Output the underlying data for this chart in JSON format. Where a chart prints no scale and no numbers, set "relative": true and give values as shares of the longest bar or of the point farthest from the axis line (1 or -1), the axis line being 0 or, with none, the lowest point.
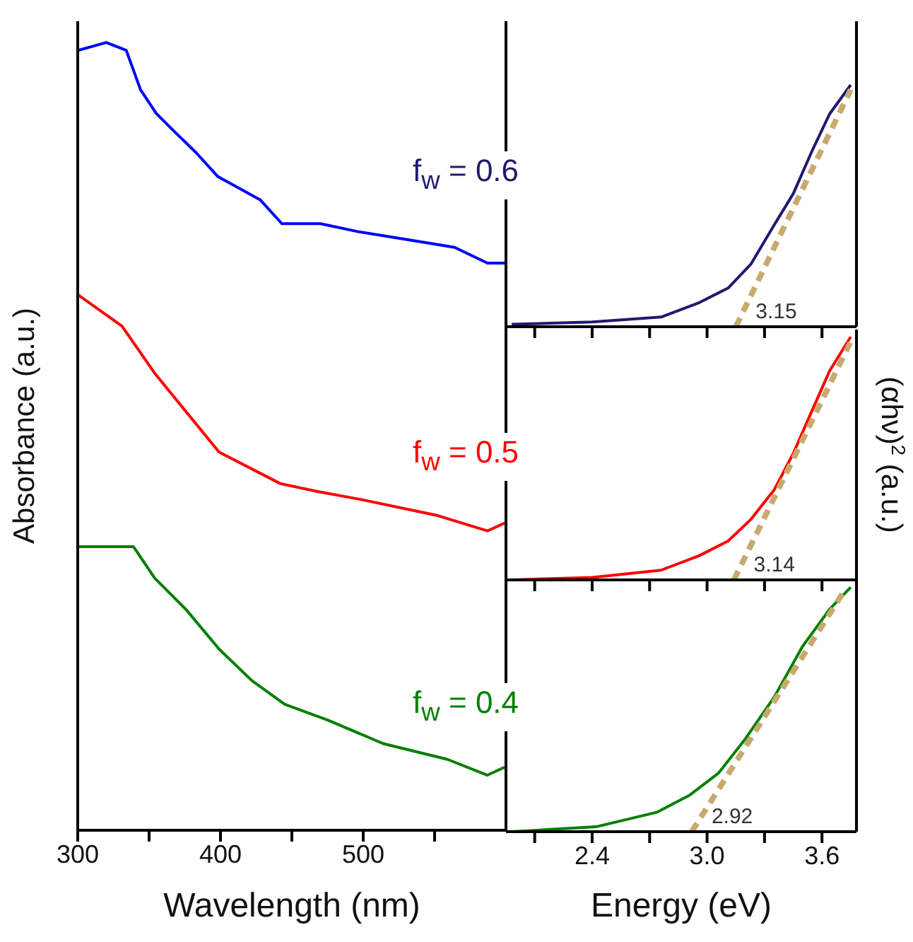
{
  "chart_data": [
    {
      "type": "line",
      "relative": true,
      "xlabel": "Wavelength (nm)",
      "ylabel": "Absorbance (a.u.)",
      "xlim": [
        300,
        600
      ],
      "xticks": [
        300,
        400,
        500,
        {
          "value": 350,
          "label": null
        },
        {
          "value": 450,
          "label": null
        },
        {
          "value": 550,
          "label": null
        }
      ],
      "series": [
        {
          "color": "#0000ff",
          "x": [
            300,
            320,
            334,
            344,
            355,
            366,
            383,
            398,
            428,
            443,
            470,
            496,
            530,
            564,
            587,
            599
          ],
          "values": [
            0.99,
            1.0,
            0.99,
            0.94,
            0.91,
            0.89,
            0.86,
            0.83,
            0.8,
            0.77,
            0.77,
            0.76,
            0.75,
            0.74,
            0.72,
            0.72
          ]
        },
        {
          "color": "#ff0000",
          "x": [
            300,
            331,
            354,
            372,
            399,
            442,
            468,
            498,
            551,
            587,
            599
          ],
          "values": [
            0.68,
            0.64,
            0.58,
            0.54,
            0.48,
            0.44,
            0.43,
            0.42,
            0.4,
            0.38,
            0.39
          ]
        },
        {
          "color": "#008000",
          "x": [
            300,
            339,
            354,
            376,
            399,
            422,
            445,
            475,
            514,
            559,
            587,
            599
          ],
          "values": [
            0.36,
            0.36,
            0.32,
            0.28,
            0.23,
            0.19,
            0.16,
            0.14,
            0.11,
            0.09,
            0.07,
            0.08
          ]
        }
      ]
    },
    {
      "type": "line",
      "relative": true,
      "tick_labels": false,
      "xlim": [
        1.95,
        3.78
      ],
      "xticks": [
        2.1,
        2.4,
        2.7,
        3,
        3.3,
        3.6
      ],
      "annotations": [
        "f$_{w}$ = 0.6",
        {
          "text": "3.15",
          "x": 3.15,
          "y": 0
        }
      ],
      "series": [
        {
          "color": "#1f1a6e",
          "x": [
            1.98,
            2.4,
            2.76,
            2.96,
            3.11,
            3.23,
            3.35,
            3.45,
            3.55,
            3.64,
            3.75
          ],
          "values": [
            0.01,
            0.02,
            0.04,
            0.1,
            0.16,
            0.26,
            0.42,
            0.55,
            0.73,
            0.88,
            1.0
          ]
        },
        {
          "color": "#c8aa6e",
          "line_style": "dashed",
          "x": [
            3.15,
            3.75
          ],
          "values": [
            0,
            0.98
          ]
        }
      ]
    },
    {
      "type": "line",
      "relative": true,
      "tick_labels": false,
      "ylabel": "(αhν)$^{2}$ (a.u.)",
      "xlim": [
        1.95,
        3.78
      ],
      "xticks": [
        2.1,
        2.4,
        2.7,
        3,
        3.3,
        3.6
      ],
      "annotations": [
        "f$_{w}$ = 0.5",
        {
          "text": "3.14",
          "x": 3.14,
          "y": 0
        }
      ],
      "series": [
        {
          "color": "#ff0000",
          "x": [
            1.98,
            2.4,
            2.76,
            2.96,
            3.11,
            3.23,
            3.35,
            3.45,
            3.55,
            3.64,
            3.75
          ],
          "values": [
            0,
            0.01,
            0.04,
            0.1,
            0.16,
            0.25,
            0.37,
            0.52,
            0.7,
            0.86,
            1.0
          ]
        },
        {
          "color": "#c8aa6e",
          "line_style": "dashed",
          "x": [
            3.14,
            3.75
          ],
          "values": [
            0,
            0.98
          ]
        }
      ]
    },
    {
      "type": "line",
      "relative": true,
      "xlabel": "Energy (eV)",
      "xlim": [
        1.95,
        3.78
      ],
      "xticks": [
        2.4,
        {
          "value": 3,
          "label": "3.0"
        },
        3.6,
        {
          "value": 2.1,
          "label": null
        },
        {
          "value": 2.7,
          "label": null
        },
        {
          "value": 3.3,
          "label": null
        }
      ],
      "annotations": [
        "f$_{w}$ = 0.4",
        {
          "text": "2.92",
          "x": 2.92,
          "y": 0
        }
      ],
      "series": [
        {
          "color": "#008000",
          "x": [
            1.98,
            2.42,
            2.74,
            2.91,
            3.06,
            3.2,
            3.35,
            3.5,
            3.64,
            3.75
          ],
          "values": [
            0,
            0.02,
            0.08,
            0.15,
            0.24,
            0.38,
            0.55,
            0.76,
            0.91,
            1.0
          ]
        },
        {
          "color": "#c8aa6e",
          "line_style": "dashed",
          "x": [
            2.92,
            3.72
          ],
          "values": [
            0,
            0.99
          ]
        }
      ]
    }
  ]
}
